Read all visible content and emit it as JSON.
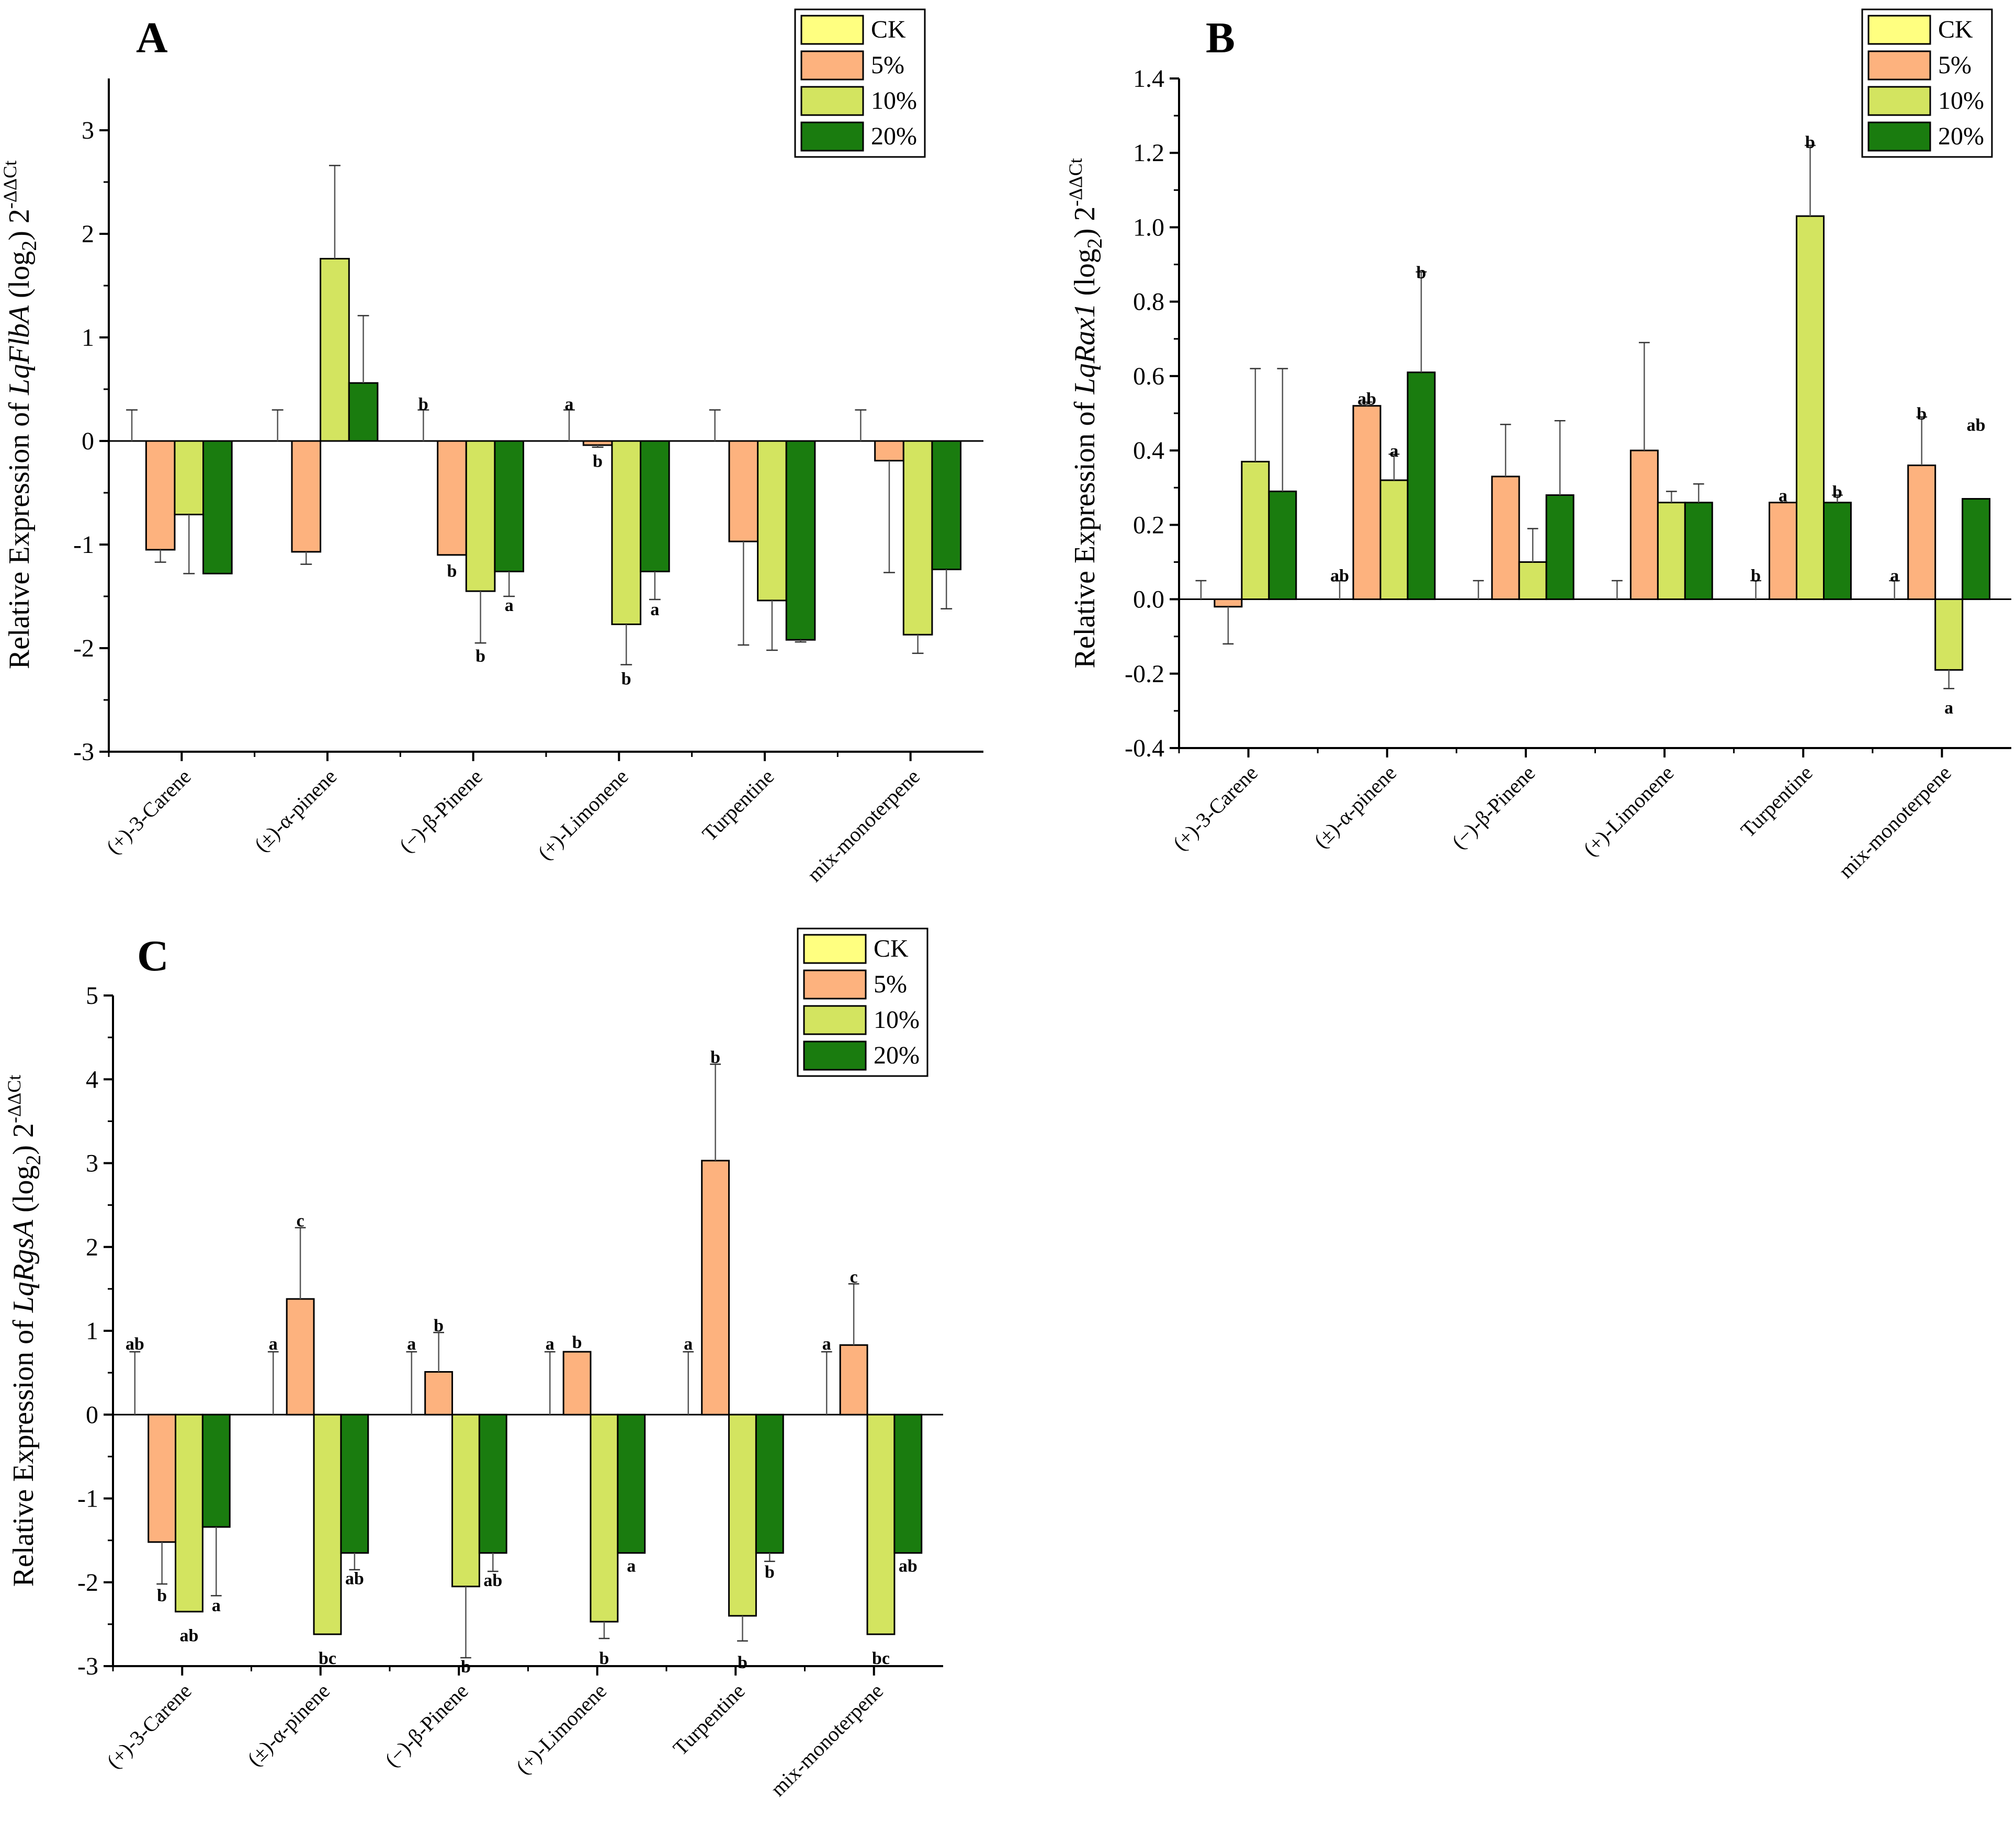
{
  "colors": {
    "CK": "#ffff80",
    "5%": "#fdb27e",
    "10%": "#d3e460",
    "20%": "#1a7c0f"
  },
  "chart_data": [
    {
      "type": "bar",
      "panel": "A",
      "ylabel": {
        "prefix": "Relative Expression of ",
        "gene": "LqFlbA",
        "log": " (log",
        "log_sub": "2",
        "log_close": ") 2",
        "exponent": "-ΔΔCt"
      },
      "ylim": [
        -3,
        3.5
      ],
      "yticks": [
        -3,
        -2,
        -1,
        0,
        1,
        2,
        3
      ],
      "categories": [
        "(+)-3-Carene",
        "(±)-α-pinene",
        "(−)-β-Pinene",
        "(+)-Limonene",
        "Turpentine",
        "mix-monoterpene"
      ],
      "legend": [
        "CK",
        "5%",
        "10%",
        "20%"
      ],
      "series": [
        {
          "name": "CK",
          "values": [
            0,
            0,
            0,
            0,
            0,
            0
          ],
          "errors": [
            0.3,
            0.3,
            0.3,
            0.3,
            0.3,
            0.3
          ]
        },
        {
          "name": "5%",
          "values": [
            -1.05,
            -1.07,
            -1.1,
            -0.04,
            -0.97,
            -0.19
          ],
          "errors": [
            0.12,
            0.12,
            0.0,
            0.02,
            1.0,
            1.08
          ]
        },
        {
          "name": "10%",
          "values": [
            -0.71,
            1.76,
            -1.45,
            -1.77,
            -1.54,
            -1.87
          ],
          "errors": [
            0.57,
            0.9,
            0.5,
            0.39,
            0.48,
            0.18
          ]
        },
        {
          "name": "20%",
          "values": [
            -1.28,
            0.56,
            -1.26,
            -1.26,
            -1.92,
            -1.24
          ],
          "errors": [
            0.0,
            0.65,
            0.24,
            0.27,
            0.02,
            0.38
          ]
        }
      ],
      "annotations": [
        {
          "cat": 2,
          "series": 0,
          "text": "b",
          "y": 0.36
        },
        {
          "cat": 3,
          "series": 0,
          "text": "a",
          "y": 0.36
        },
        {
          "cat": 2,
          "series": 1,
          "text": "b",
          "y": -1.25
        },
        {
          "cat": 3,
          "series": 1,
          "text": "b",
          "y": -0.19
        },
        {
          "cat": 2,
          "series": 2,
          "text": "b",
          "y": -2.07
        },
        {
          "cat": 3,
          "series": 2,
          "text": "b",
          "y": -2.29
        },
        {
          "cat": 2,
          "series": 3,
          "text": "a",
          "y": -1.58
        },
        {
          "cat": 3,
          "series": 3,
          "text": "a",
          "y": -1.62
        }
      ]
    },
    {
      "type": "bar",
      "panel": "B",
      "ylabel": {
        "prefix": "Relative Expression of ",
        "gene": "LqRax1",
        "log": " (log",
        "log_sub": "2",
        "log_close": ") 2",
        "exponent": "-ΔΔCt"
      },
      "ylim": [
        -0.4,
        1.4
      ],
      "yticks": [
        -0.4,
        -0.2,
        0.0,
        0.2,
        0.4,
        0.6,
        0.8,
        1.0,
        1.2,
        1.4
      ],
      "tick_decimals": 1,
      "categories": [
        "(+)-3-Carene",
        "(±)-α-pinene",
        "(−)-β-Pinene",
        "(+)-Limonene",
        "Turpentine",
        "mix-monoterpene"
      ],
      "legend": [
        "CK",
        "5%",
        "10%",
        "20%"
      ],
      "series": [
        {
          "name": "CK",
          "values": [
            0,
            0,
            0,
            0,
            0,
            0
          ],
          "errors": [
            0.05,
            0.05,
            0.05,
            0.05,
            0.05,
            0.05
          ]
        },
        {
          "name": "5%",
          "values": [
            -0.02,
            0.52,
            0.33,
            0.4,
            0.26,
            0.36
          ],
          "errors": [
            0.1,
            0.01,
            0.14,
            0.29,
            0.0,
            0.13
          ]
        },
        {
          "name": "10%",
          "values": [
            0.37,
            0.32,
            0.1,
            0.26,
            1.03,
            -0.19
          ],
          "errors": [
            0.25,
            0.07,
            0.09,
            0.03,
            0.19,
            0.05
          ]
        },
        {
          "name": "20%",
          "values": [
            0.29,
            0.61,
            0.28,
            0.26,
            0.26,
            0.27
          ],
          "errors": [
            0.33,
            0.27,
            0.2,
            0.05,
            0.02,
            0.0
          ]
        }
      ],
      "annotations": [
        {
          "cat": 1,
          "series": 0,
          "text": "ab",
          "y": 0.065
        },
        {
          "cat": 4,
          "series": 0,
          "text": "b",
          "y": 0.065
        },
        {
          "cat": 5,
          "series": 0,
          "text": "a",
          "y": 0.065
        },
        {
          "cat": 1,
          "series": 1,
          "text": "ab",
          "y": 0.54
        },
        {
          "cat": 4,
          "series": 1,
          "text": "a",
          "y": 0.28
        },
        {
          "cat": 5,
          "series": 1,
          "text": "b",
          "y": 0.5
        },
        {
          "cat": 1,
          "series": 2,
          "text": "a",
          "y": 0.4
        },
        {
          "cat": 4,
          "series": 2,
          "text": "b",
          "y": 1.23
        },
        {
          "cat": 5,
          "series": 2,
          "text": "a",
          "y": -0.29
        },
        {
          "cat": 1,
          "series": 3,
          "text": "b",
          "y": 0.88
        },
        {
          "cat": 4,
          "series": 3,
          "text": "b",
          "y": 0.29
        },
        {
          "cat": 5,
          "series": 3,
          "text": "ab",
          "y": 0.47
        }
      ]
    },
    {
      "type": "bar",
      "panel": "C",
      "ylabel": {
        "prefix": "Relative Expression of ",
        "gene": "LqRgsA",
        "log": " (log",
        "log_sub": "2",
        "log_close": ") 2",
        "exponent": "-ΔΔCt"
      },
      "ylim": [
        -3,
        5
      ],
      "yticks": [
        -3,
        -2,
        -1,
        0,
        1,
        2,
        3,
        4,
        5
      ],
      "categories": [
        "(+)-3-Carene",
        "(±)-α-pinene",
        "(−)-β-Pinene",
        "(+)-Limonene",
        "Turpentine",
        "mix-monoterpene"
      ],
      "legend": [
        "CK",
        "5%",
        "10%",
        "20%"
      ],
      "series": [
        {
          "name": "CK",
          "values": [
            0,
            0,
            0,
            0,
            0,
            0
          ],
          "errors": [
            0.75,
            0.75,
            0.75,
            0.75,
            0.75,
            0.75
          ]
        },
        {
          "name": "5%",
          "values": [
            -1.52,
            1.38,
            0.51,
            0.75,
            3.03,
            0.83
          ],
          "errors": [
            0.5,
            0.85,
            0.47,
            0.0,
            1.15,
            0.73
          ]
        },
        {
          "name": "10%",
          "values": [
            -2.35,
            -2.62,
            -2.05,
            -2.47,
            -2.4,
            -2.62
          ],
          "errors": [
            0.0,
            0.0,
            0.85,
            0.2,
            0.3,
            0.0
          ]
        },
        {
          "name": "20%",
          "values": [
            -1.34,
            -1.65,
            -1.65,
            -1.65,
            -1.65,
            -1.65
          ],
          "errors": [
            0.82,
            0.2,
            0.22,
            0.0,
            0.1,
            0.0
          ]
        }
      ],
      "annotations": [
        {
          "cat": 0,
          "series": 0,
          "text": "ab",
          "y": 0.85
        },
        {
          "cat": 1,
          "series": 0,
          "text": "a",
          "y": 0.85
        },
        {
          "cat": 2,
          "series": 0,
          "text": "a",
          "y": 0.85
        },
        {
          "cat": 3,
          "series": 0,
          "text": "a",
          "y": 0.85
        },
        {
          "cat": 4,
          "series": 0,
          "text": "a",
          "y": 0.85
        },
        {
          "cat": 5,
          "series": 0,
          "text": "a",
          "y": 0.85
        },
        {
          "cat": 0,
          "series": 1,
          "text": "b",
          "y": -2.15
        },
        {
          "cat": 1,
          "series": 1,
          "text": "c",
          "y": 2.32
        },
        {
          "cat": 2,
          "series": 1,
          "text": "b",
          "y": 1.07
        },
        {
          "cat": 3,
          "series": 1,
          "text": "b",
          "y": 0.87
        },
        {
          "cat": 4,
          "series": 1,
          "text": "b",
          "y": 4.27
        },
        {
          "cat": 5,
          "series": 1,
          "text": "c",
          "y": 1.65
        },
        {
          "cat": 0,
          "series": 2,
          "text": "ab",
          "y": -2.63
        },
        {
          "cat": 1,
          "series": 2,
          "text": "bc",
          "y": -2.9
        },
        {
          "cat": 2,
          "series": 2,
          "text": "b",
          "y": -3.0
        },
        {
          "cat": 3,
          "series": 2,
          "text": "b",
          "y": -2.9
        },
        {
          "cat": 4,
          "series": 2,
          "text": "b",
          "y": -2.95
        },
        {
          "cat": 5,
          "series": 2,
          "text": "bc",
          "y": -2.9
        },
        {
          "cat": 0,
          "series": 3,
          "text": "a",
          "y": -2.27
        },
        {
          "cat": 1,
          "series": 3,
          "text": "ab",
          "y": -1.95
        },
        {
          "cat": 2,
          "series": 3,
          "text": "ab",
          "y": -1.97
        },
        {
          "cat": 3,
          "series": 3,
          "text": "a",
          "y": -1.8
        },
        {
          "cat": 4,
          "series": 3,
          "text": "b",
          "y": -1.87
        },
        {
          "cat": 5,
          "series": 3,
          "text": "ab",
          "y": -1.8
        }
      ]
    }
  ]
}
